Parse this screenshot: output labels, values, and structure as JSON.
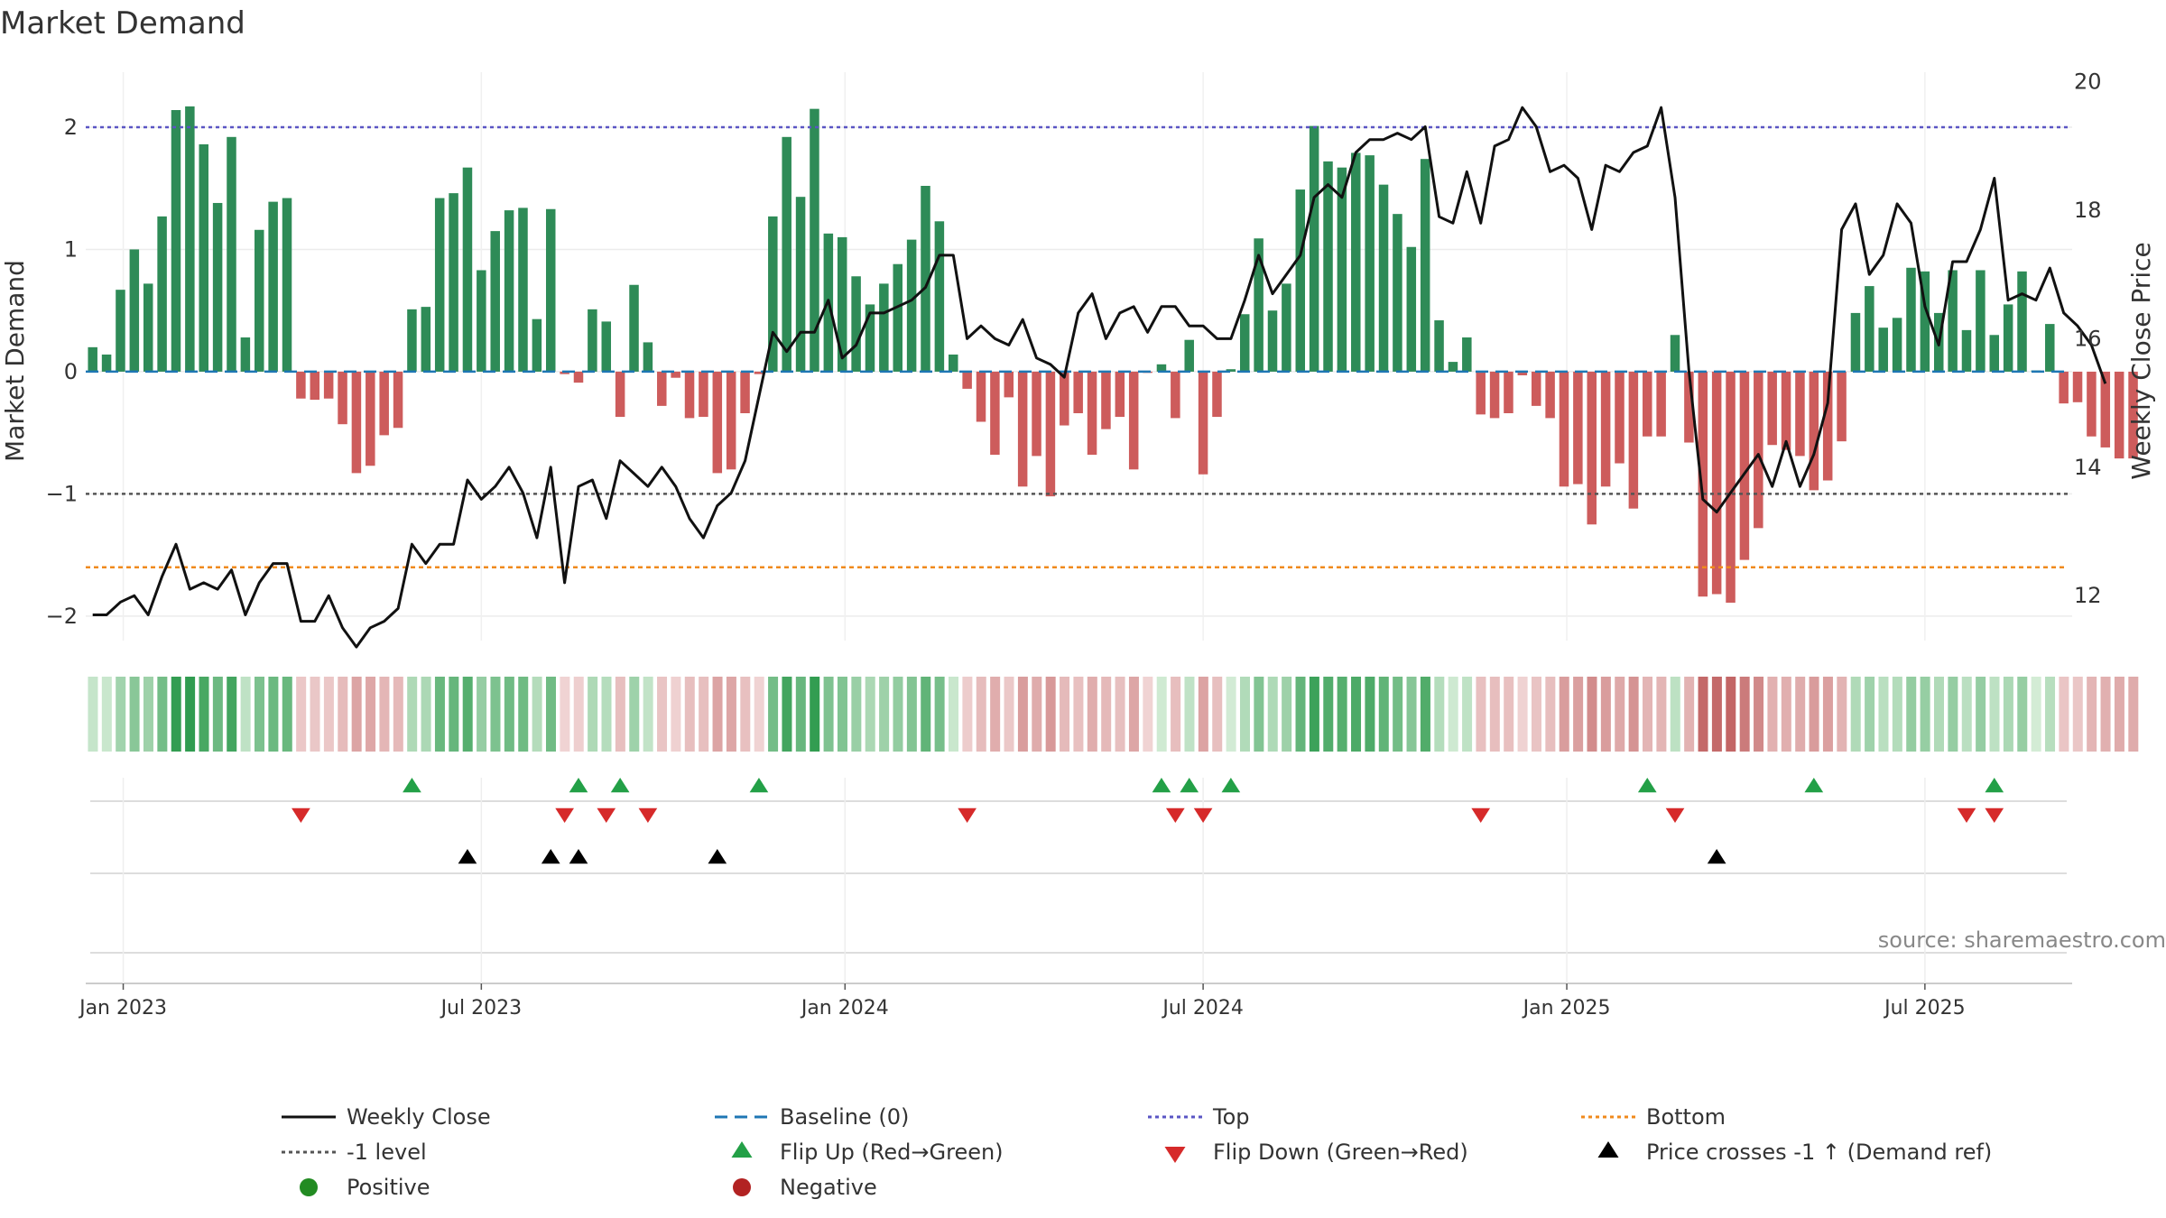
{
  "chart_data": {
    "type": "bar",
    "title": "Market Demand",
    "ylabel": "Market Demand",
    "y2label": "Weekly Close Price",
    "ylim": [
      -2.2,
      2.45
    ],
    "y2lim": [
      11.3,
      20.15
    ],
    "yticks": [
      {
        "v": 2,
        "label": "2"
      },
      {
        "v": 1,
        "label": "1"
      },
      {
        "v": 0,
        "label": "0"
      },
      {
        "v": -1,
        "label": "−1"
      },
      {
        "v": -2,
        "label": "−2"
      }
    ],
    "y2ticks": [
      {
        "v": 20,
        "label": "20"
      },
      {
        "v": 18,
        "label": "18"
      },
      {
        "v": 16,
        "label": "16"
      },
      {
        "v": 14,
        "label": "14"
      },
      {
        "v": 12,
        "label": "12"
      }
    ],
    "xticks": [
      {
        "i": 2.2,
        "label": "Jan 2023"
      },
      {
        "i": 28,
        "label": "Jul 2023"
      },
      {
        "i": 54.2,
        "label": "Jan 2024"
      },
      {
        "i": 80,
        "label": "Jul 2024"
      },
      {
        "i": 106.2,
        "label": "Jan 2025"
      },
      {
        "i": 132,
        "label": "Jul 2025"
      }
    ],
    "reference_lines": {
      "top": 2.0,
      "bottom": -1.6,
      "level_minus1": -1.0,
      "baseline": 0
    },
    "demand": [
      0.2,
      0.14,
      0.67,
      1.0,
      0.72,
      1.27,
      2.14,
      2.17,
      1.86,
      1.38,
      1.92,
      0.28,
      1.16,
      1.39,
      1.42,
      -0.22,
      -0.23,
      -0.22,
      -0.43,
      -0.83,
      -0.77,
      -0.52,
      -0.46,
      0.51,
      0.53,
      1.42,
      1.46,
      1.67,
      0.83,
      1.15,
      1.32,
      1.34,
      0.43,
      1.33,
      -0.02,
      -0.09,
      0.51,
      0.41,
      -0.37,
      0.71,
      0.24,
      -0.28,
      -0.05,
      -0.38,
      -0.37,
      -0.83,
      -0.8,
      -0.34,
      -0.02,
      1.27,
      1.92,
      1.43,
      2.15,
      1.13,
      1.1,
      0.78,
      0.55,
      0.72,
      0.88,
      1.08,
      1.52,
      1.23,
      0.14,
      -0.14,
      -0.41,
      -0.68,
      -0.21,
      -0.94,
      -0.69,
      -1.02,
      -0.44,
      -0.34,
      -0.68,
      -0.47,
      -0.37,
      -0.8,
      -0.01,
      0.06,
      -0.38,
      0.26,
      -0.84,
      -0.37,
      0.02,
      0.47,
      1.09,
      0.5,
      0.72,
      1.49,
      2.01,
      1.72,
      1.67,
      1.79,
      1.77,
      1.53,
      1.29,
      1.02,
      1.74,
      0.42,
      0.08,
      0.28,
      -0.35,
      -0.38,
      -0.34,
      -0.03,
      -0.28,
      -0.38,
      -0.94,
      -0.92,
      -1.25,
      -0.94,
      -0.75,
      -1.12,
      -0.53,
      -0.53,
      0.3,
      -0.58,
      -1.84,
      -1.82,
      -1.89,
      -1.54,
      -1.28,
      -0.6,
      -0.64,
      -0.69,
      -0.97,
      -0.89,
      -0.57,
      0.48,
      0.7,
      0.36,
      0.44,
      0.85,
      0.82,
      0.48,
      0.83,
      0.34,
      0.83,
      0.3,
      0.55,
      0.82,
      0.01,
      0.39,
      -0.26,
      -0.25,
      -0.53,
      -0.62,
      -0.71,
      -0.71
    ],
    "close": [
      11.7,
      11.7,
      11.9,
      12.0,
      11.7,
      12.3,
      12.8,
      12.1,
      12.2,
      12.1,
      12.4,
      11.7,
      12.2,
      12.5,
      12.5,
      11.6,
      11.6,
      12.0,
      11.5,
      11.2,
      11.5,
      11.6,
      11.8,
      12.8,
      12.5,
      12.8,
      12.8,
      13.8,
      13.5,
      13.7,
      14.0,
      13.6,
      12.9,
      14.0,
      12.2,
      13.7,
      13.8,
      13.2,
      14.1,
      13.9,
      13.7,
      14.0,
      13.7,
      13.2,
      12.9,
      13.4,
      13.6,
      14.1,
      15.1,
      16.1,
      15.8,
      16.1,
      16.1,
      16.6,
      15.7,
      15.9,
      16.4,
      16.4,
      16.5,
      16.6,
      16.8,
      17.3,
      17.3,
      16.0,
      16.2,
      16.0,
      15.9,
      16.3,
      15.7,
      15.6,
      15.4,
      16.4,
      16.7,
      16.0,
      16.4,
      16.5,
      16.1,
      16.5,
      16.5,
      16.2,
      16.2,
      16.0,
      16.0,
      16.6,
      17.3,
      16.7,
      17.0,
      17.3,
      18.2,
      18.4,
      18.2,
      18.9,
      19.1,
      19.1,
      19.2,
      19.1,
      19.3,
      17.9,
      17.8,
      18.6,
      17.8,
      19.0,
      19.1,
      19.6,
      19.3,
      18.6,
      18.7,
      18.5,
      17.7,
      18.7,
      18.6,
      18.9,
      19.0,
      19.6,
      18.2,
      15.5,
      13.5,
      13.3,
      13.6,
      13.9,
      14.2,
      13.7,
      14.4,
      13.7,
      14.2,
      15.0,
      17.7,
      18.1,
      17.0,
      17.3,
      18.1,
      17.8,
      16.5,
      15.9,
      17.2,
      17.2,
      17.7,
      18.5,
      16.6,
      16.7,
      16.6,
      17.1,
      16.4,
      16.2,
      15.9,
      15.3
    ],
    "flip_up": [
      23,
      35,
      38,
      48,
      77,
      79,
      82,
      112,
      124,
      137
    ],
    "flip_down": [
      15,
      34,
      37,
      40,
      63,
      78,
      80,
      100,
      114,
      135,
      137
    ],
    "price_cross": [
      27,
      33,
      35,
      45,
      117
    ],
    "source": "source: sharemaestro.com",
    "legend": [
      {
        "label": "Weekly Close",
        "symbol": "line",
        "color": "#111111"
      },
      {
        "label": "Baseline (0)",
        "symbol": "dash",
        "color": "#1f77b4"
      },
      {
        "label": "Top",
        "symbol": "dot",
        "color": "#5a55c4"
      },
      {
        "label": "Bottom",
        "symbol": "dot",
        "color": "#f08a1c"
      },
      {
        "label": "-1 level",
        "symbol": "dot",
        "color": "#555555"
      },
      {
        "label": "Flip Up (Red→Green)",
        "symbol": "tri-up",
        "color": "#23a047"
      },
      {
        "label": "Flip Down (Green→Red)",
        "symbol": "tri-down",
        "color": "#d62a2a"
      },
      {
        "label": "Price crosses -1 ↑ (Demand ref)",
        "symbol": "tri-up",
        "color": "#000000"
      },
      {
        "label": "Positive",
        "symbol": "circle",
        "color": "#228b22"
      },
      {
        "label": "Negative",
        "symbol": "circle",
        "color": "#b22222"
      }
    ],
    "colors": {
      "positive_bar": "#2e8b57",
      "negative_bar": "#cd5c5c",
      "close_line": "#111111",
      "top_line": "#5a55c4",
      "bottom_line": "#f08a1c",
      "minus1_line": "#555555",
      "baseline": "#1f77b4"
    }
  }
}
